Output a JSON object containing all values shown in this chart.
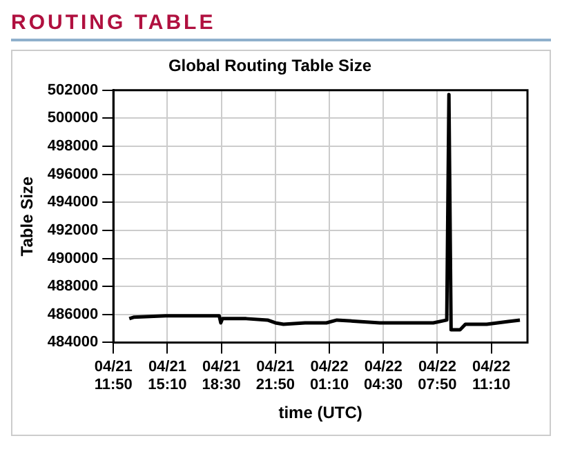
{
  "chart_data": {
    "type": "line",
    "title": "ROUTING TABLE",
    "subtitle": "Global Routing Table Size",
    "xlabel": "time (UTC)",
    "ylabel": "Table Size",
    "x": [
      "--04-21T12:49",
      "--04-21T13:05",
      "--04-21T15:04",
      "--04-21T16:43",
      "--04-21T18:22",
      "--04-21T18:28",
      "--04-21T18:34",
      "--04-21T20:02",
      "--04-21T21:21",
      "--04-21T21:50",
      "--04-21T22:20",
      "--04-21T23:40",
      "--04-22T00:59",
      "--04-22T01:38",
      "--04-22T02:58",
      "--04-22T04:17",
      "--04-22T05:56",
      "--04-22T07:35",
      "--04-22T08:25",
      "--04-22T08:33",
      "--04-22T08:41",
      "--04-22T09:14",
      "--04-22T09:34",
      "--04-22T10:53",
      "--04-22T12:13",
      "--04-22T12:56"
    ],
    "series": [
      {
        "color": "#000000",
        "values": [
          485700,
          485800,
          485900,
          485900,
          485900,
          485400,
          485700,
          485700,
          485600,
          485400,
          485300,
          485400,
          485400,
          485600,
          485500,
          485400,
          485400,
          485400,
          485600,
          501700,
          484900,
          484900,
          485300,
          485300,
          485500,
          485600
        ]
      }
    ],
    "xlim": [
      "--04-21T11:50",
      "--04-22T13:24"
    ],
    "xticks": [
      {
        "value": "--04-21T11:50",
        "label": "04/21\n11:50"
      },
      {
        "value": "--04-21T15:10",
        "label": "04/21\n15:10"
      },
      {
        "value": "--04-21T18:30",
        "label": "04/21\n18:30"
      },
      {
        "value": "--04-21T21:50",
        "label": "04/21\n21:50"
      },
      {
        "value": "--04-22T01:10",
        "label": "04/22\n01:10"
      },
      {
        "value": "--04-22T04:30",
        "label": "04/22\n04:30"
      },
      {
        "value": "--04-22T07:50",
        "label": "04/22\n07:50"
      },
      {
        "value": "--04-22T11:10",
        "label": "04/22\n11:10"
      }
    ],
    "ylim": [
      484000,
      502000
    ],
    "yticks": [
      484000,
      486000,
      488000,
      490000,
      492000,
      494000,
      496000,
      498000,
      500000,
      502000
    ],
    "grid": true,
    "marker": "none",
    "line_style": "solid"
  }
}
